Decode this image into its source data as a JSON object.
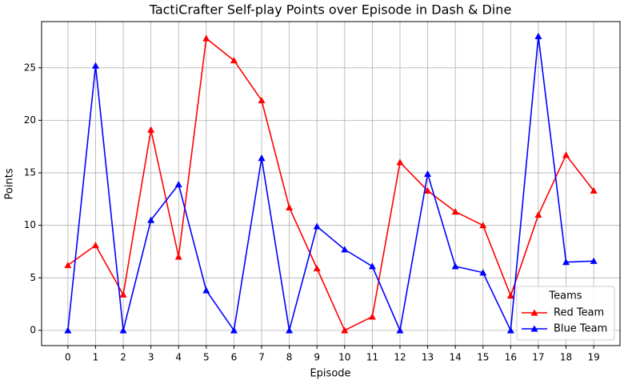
{
  "chart_data": {
    "type": "line",
    "title": "TactiCrafter Self-play Points over Episode in Dash & Dine",
    "x_label": "Episode",
    "y_label": "Points",
    "x": [
      0,
      1,
      2,
      3,
      4,
      5,
      6,
      7,
      8,
      9,
      10,
      11,
      12,
      13,
      14,
      15,
      16,
      17,
      18,
      19
    ],
    "series": [
      {
        "name": "Red Team",
        "color": "#ff0000",
        "marker": "triangle",
        "values": [
          6.2,
          8.1,
          3.4,
          19.1,
          7.0,
          27.8,
          25.7,
          21.9,
          11.7,
          5.9,
          0,
          1.3,
          16.0,
          13.3,
          11.3,
          10.0,
          3.3,
          11.0,
          16.7,
          13.3
        ]
      },
      {
        "name": "Blue Team",
        "color": "#0000ff",
        "marker": "triangle",
        "values": [
          0,
          25.2,
          0,
          10.5,
          13.9,
          3.8,
          0,
          16.4,
          0,
          9.9,
          7.7,
          6.1,
          0,
          14.9,
          6.1,
          5.5,
          0,
          28.0,
          6.5,
          6.6
        ]
      }
    ],
    "xlim": [
      -0.95,
      19.95
    ],
    "ylim": [
      -1.45,
      29.4
    ],
    "xticks": [
      0,
      1,
      2,
      3,
      4,
      5,
      6,
      7,
      8,
      9,
      10,
      11,
      12,
      13,
      14,
      15,
      16,
      17,
      18,
      19
    ],
    "yticks": [
      0,
      5,
      10,
      15,
      20,
      25
    ],
    "grid": true,
    "legend_title": "Teams",
    "legend_position": "lower right"
  }
}
